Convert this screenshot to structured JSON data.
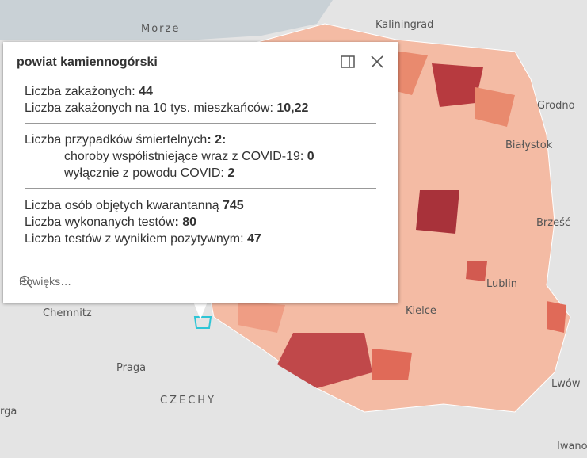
{
  "map": {
    "labels": [
      "Morze",
      "Kaliningrad",
      "Grodno",
      "Białystok",
      "Brześć",
      "Lublin",
      "Kielce",
      "Chemnitz",
      "Praga",
      "CZECHY",
      "Lwów",
      "Iwano-",
      "rga"
    ]
  },
  "popup": {
    "title": "powiat kamiennogórski",
    "sections": [
      [
        {
          "label": "Liczba zakażonych: ",
          "value": "44"
        },
        {
          "label": "Liczba zakażonych na 10 tys. mieszkańców: ",
          "value": "10,22"
        }
      ],
      [
        {
          "label": "Liczba przypadków śmiertelnych",
          "value": ": 2:"
        },
        {
          "label": "choroby współistniejące wraz z COVID-19: ",
          "value": "0"
        },
        {
          "label": "wyłącznie z powodu COVID: ",
          "value": "2"
        }
      ],
      [
        {
          "label": "Liczba osób objętych kwarantanną ",
          "value": "745"
        },
        {
          "label": "Liczba wykonanych testów",
          "value": ": 80"
        },
        {
          "label": "Liczba testów z wynikiem pozytywnym: ",
          "value": "47"
        }
      ]
    ],
    "zoom": "Powięks…"
  }
}
